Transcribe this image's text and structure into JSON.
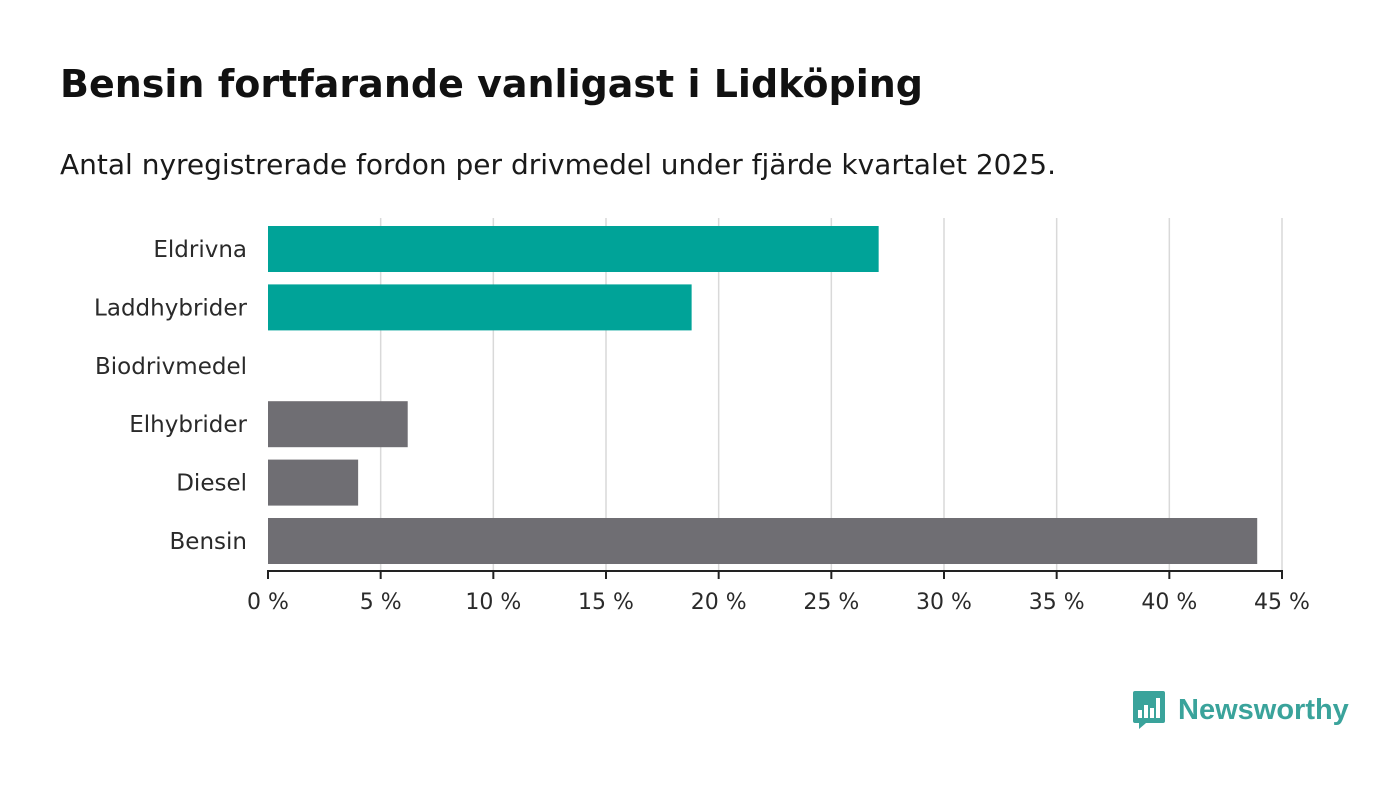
{
  "header": {
    "title": "Bensin fortfarande vanligast i Lidköping",
    "subtitle": "Antal nyregistrerade fordon per drivmedel under fjärde kvartalet 2025."
  },
  "brand": {
    "name": "Newsworthy",
    "icon": "bar-chart-speech-bubble-icon",
    "color": "#3aa39b"
  },
  "colors": {
    "highlight": "#00a398",
    "muted": "#6f6e73",
    "grid": "#d9d9d9",
    "axis": "#222222"
  },
  "chart_data": {
    "type": "bar",
    "orientation": "horizontal",
    "title": "Bensin fortfarande vanligast i Lidköping",
    "subtitle": "Antal nyregistrerade fordon per drivmedel under fjärde kvartalet 2025.",
    "xlabel": "",
    "ylabel": "",
    "unit": "%",
    "xlim": [
      0,
      45
    ],
    "xticks": [
      0,
      5,
      10,
      15,
      20,
      25,
      30,
      35,
      40,
      45
    ],
    "xtick_labels": [
      "0 %",
      "5 %",
      "10 %",
      "15 %",
      "20 %",
      "25 %",
      "30 %",
      "35 %",
      "40 %",
      "45 %"
    ],
    "grid": true,
    "legend": "none",
    "categories": [
      "Eldrivna",
      "Laddhybrider",
      "Biodrivmedel",
      "Elhybrider",
      "Diesel",
      "Bensin"
    ],
    "values": [
      27.1,
      18.8,
      0,
      6.2,
      4.0,
      43.9
    ],
    "bar_colors": [
      "#00a398",
      "#00a398",
      "#00a398",
      "#6f6e73",
      "#6f6e73",
      "#6f6e73"
    ]
  }
}
